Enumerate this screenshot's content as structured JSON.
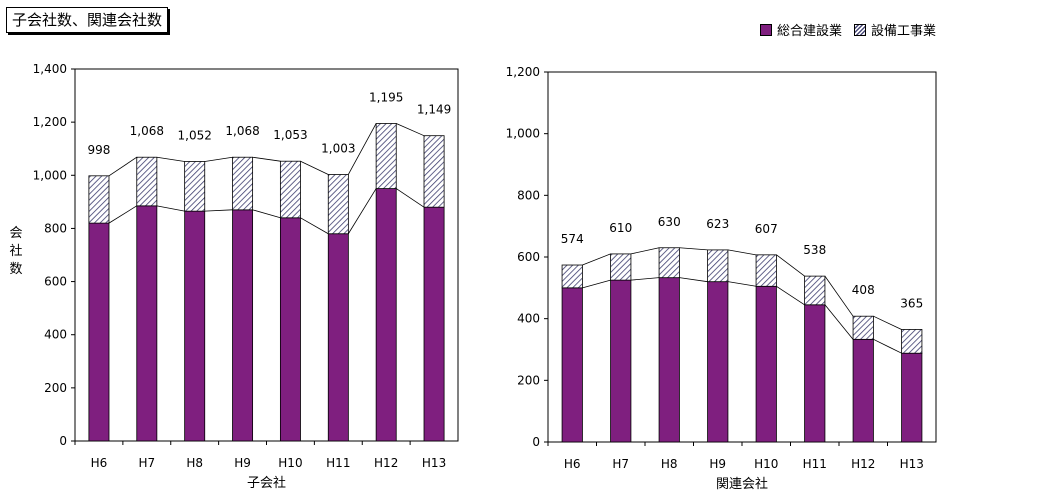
{
  "page_title": "子会社数、関連会社数",
  "legend": {
    "general": {
      "label": "総合建設業",
      "color": "#7f1f7f"
    },
    "equipment": {
      "label": "設備工事業",
      "pattern": "hatched"
    }
  },
  "chart_data": [
    {
      "type": "bar",
      "stacked": true,
      "xlabel": "子会社",
      "ylabel": "会社数",
      "ylim": [
        0,
        1400
      ],
      "yticks": [
        0,
        200,
        400,
        600,
        800,
        1000,
        1200,
        1400
      ],
      "ytick_labels": [
        "0",
        "200",
        "400",
        "600",
        "800",
        "1,000",
        "1,200",
        "1,400"
      ],
      "categories": [
        "H6",
        "H7",
        "H8",
        "H9",
        "H10",
        "H11",
        "H12",
        "H13"
      ],
      "series": [
        {
          "name": "総合建設業",
          "values": [
            820,
            885,
            865,
            870,
            840,
            780,
            950,
            880
          ]
        },
        {
          "name": "設備工事業",
          "values": [
            178,
            183,
            187,
            198,
            213,
            223,
            245,
            269
          ]
        }
      ],
      "totals": [
        998,
        1068,
        1052,
        1068,
        1053,
        1003,
        1195,
        1149
      ],
      "total_labels": [
        "998",
        "1,068",
        "1,052",
        "1,068",
        "1,053",
        "1,003",
        "1,195",
        "1,149"
      ],
      "grid": false
    },
    {
      "type": "bar",
      "stacked": true,
      "xlabel": "関連会社",
      "ylabel": "",
      "ylim": [
        0,
        1200
      ],
      "yticks": [
        0,
        200,
        400,
        600,
        800,
        1000,
        1200
      ],
      "ytick_labels": [
        "0",
        "200",
        "400",
        "600",
        "800",
        "1,000",
        "1,200"
      ],
      "categories": [
        "H6",
        "H7",
        "H8",
        "H9",
        "H10",
        "H11",
        "H12",
        "H13"
      ],
      "series": [
        {
          "name": "総合建設業",
          "values": [
            500,
            525,
            533,
            520,
            505,
            445,
            333,
            288
          ]
        },
        {
          "name": "設備工事業",
          "values": [
            74,
            85,
            97,
            103,
            102,
            93,
            75,
            77
          ]
        }
      ],
      "totals": [
        574,
        610,
        630,
        623,
        607,
        538,
        408,
        365
      ],
      "total_labels": [
        "574",
        "610",
        "630",
        "623",
        "607",
        "538",
        "408",
        "365"
      ],
      "grid": false
    }
  ]
}
